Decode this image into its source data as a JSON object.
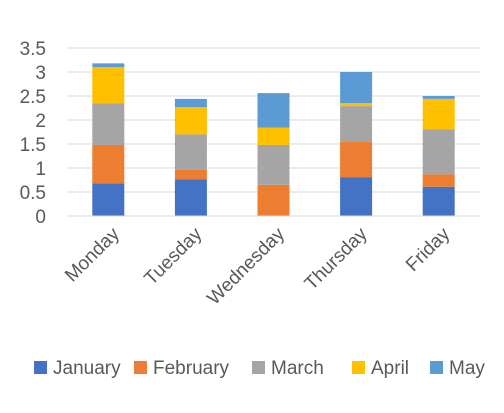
{
  "chart_data": {
    "type": "bar",
    "stacked": true,
    "categories": [
      "Monday",
      "Tuesday",
      "Wednesday",
      "Thursday",
      "Friday"
    ],
    "series": [
      {
        "name": "January",
        "color": "#4472C4",
        "values": [
          0.68,
          0.76,
          0.0,
          0.81,
          0.61
        ]
      },
      {
        "name": "February",
        "color": "#ED7D31",
        "values": [
          0.8,
          0.2,
          0.65,
          0.74,
          0.26
        ]
      },
      {
        "name": "March",
        "color": "#A5A5A5",
        "values": [
          0.87,
          0.74,
          0.83,
          0.74,
          0.94
        ]
      },
      {
        "name": "April",
        "color": "#FFC000",
        "values": [
          0.75,
          0.57,
          0.36,
          0.06,
          0.63
        ]
      },
      {
        "name": "May",
        "color": "#5B9BD5",
        "values": [
          0.08,
          0.17,
          0.72,
          0.65,
          0.06
        ]
      }
    ],
    "yticks": [
      "0",
      "0.5",
      "1",
      "1.5",
      "2",
      "2.5",
      "3",
      "3.5"
    ],
    "ylim": [
      0,
      3.5
    ],
    "grid": true,
    "legend": "bottom",
    "title": "",
    "xlabel": "",
    "ylabel": ""
  }
}
